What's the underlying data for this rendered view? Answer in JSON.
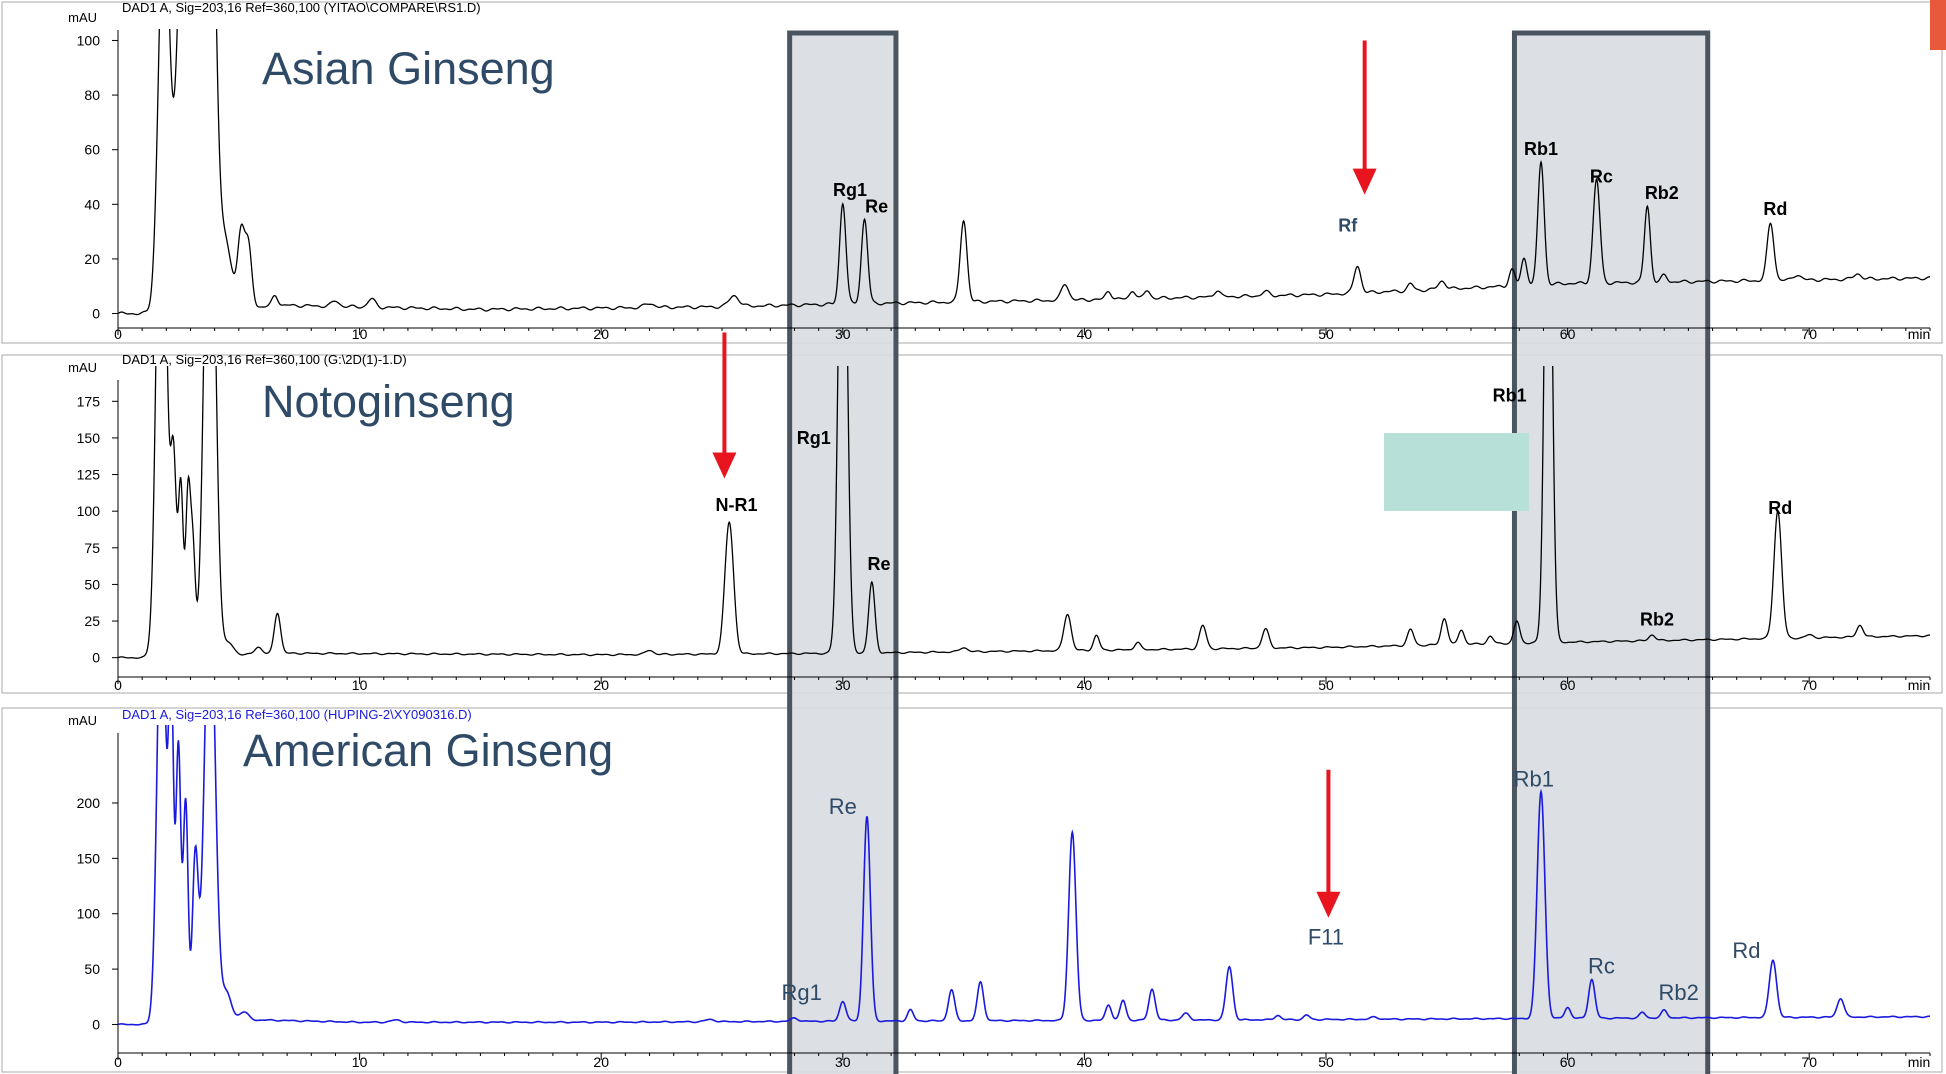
{
  "colors": {
    "trace_black": "#000000",
    "trace_blue": "#1a1adc",
    "header_blue": "#1a1adc",
    "title": "#2e4a66",
    "highlight_fill": "#d8dbe0",
    "highlight_stroke": "#4a5560",
    "arrow": "#e8141e",
    "teal_box": "#b7e0d8",
    "corner_tab": "#e8583a"
  },
  "chart_data": [
    {
      "type": "line",
      "title": "Asian Ginseng",
      "header": "DAD1 A, Sig=203,16 Ref=360,100 (YITAO\\COMPARE\\RS1.D)",
      "ylabel": "mAU",
      "xunit": "min",
      "xlim": [
        0,
        75
      ],
      "ylim": [
        -2,
        102
      ],
      "xticks": [
        0,
        10,
        20,
        30,
        40,
        50,
        60,
        70
      ],
      "yticks": [
        0,
        20,
        40,
        60,
        80,
        100
      ],
      "baseline": [
        [
          0,
          0
        ],
        [
          1.6,
          0
        ],
        [
          7,
          3
        ],
        [
          15,
          1.5
        ],
        [
          25,
          2.5
        ],
        [
          30,
          3.5
        ],
        [
          40,
          5
        ],
        [
          50,
          7
        ],
        [
          55,
          9
        ],
        [
          60,
          11
        ],
        [
          75,
          13
        ]
      ],
      "peaks": [
        {
          "x": 1.9,
          "y": 150,
          "w": 0.22
        },
        {
          "x": 2.9,
          "y": 220,
          "w": 0.35
        },
        {
          "x": 3.2,
          "y": 60,
          "w": 0.25
        },
        {
          "x": 3.8,
          "y": 200,
          "w": 0.22
        },
        {
          "x": 4.4,
          "y": 25,
          "w": 0.3
        },
        {
          "x": 5.1,
          "y": 27,
          "w": 0.14
        },
        {
          "x": 5.4,
          "y": 22,
          "w": 0.14
        },
        {
          "x": 6.5,
          "y": 4,
          "w": 0.12
        },
        {
          "x": 9,
          "y": 2,
          "w": 0.15
        },
        {
          "x": 10.5,
          "y": 3,
          "w": 0.15
        },
        {
          "x": 22,
          "y": 1.5,
          "w": 0.2
        },
        {
          "x": 25.5,
          "y": 4,
          "w": 0.2
        },
        {
          "x": 30,
          "y": 37,
          "w": 0.13
        },
        {
          "x": 30.9,
          "y": 31,
          "w": 0.13
        },
        {
          "x": 35,
          "y": 30,
          "w": 0.14
        },
        {
          "x": 39.2,
          "y": 6,
          "w": 0.15
        },
        {
          "x": 41,
          "y": 3,
          "w": 0.12
        },
        {
          "x": 42,
          "y": 3,
          "w": 0.12
        },
        {
          "x": 42.6,
          "y": 3,
          "w": 0.12
        },
        {
          "x": 45.5,
          "y": 2.5,
          "w": 0.12
        },
        {
          "x": 47.5,
          "y": 1.5,
          "w": 0.15
        },
        {
          "x": 51.3,
          "y": 10,
          "w": 0.14
        },
        {
          "x": 53.5,
          "y": 2.5,
          "w": 0.12
        },
        {
          "x": 54.8,
          "y": 3,
          "w": 0.15
        },
        {
          "x": 57.7,
          "y": 6,
          "w": 0.12
        },
        {
          "x": 58.2,
          "y": 10,
          "w": 0.12
        },
        {
          "x": 58.9,
          "y": 45,
          "w": 0.13
        },
        {
          "x": 61.2,
          "y": 38,
          "w": 0.14
        },
        {
          "x": 63.3,
          "y": 28,
          "w": 0.12
        },
        {
          "x": 64,
          "y": 2.5,
          "w": 0.12
        },
        {
          "x": 68.4,
          "y": 21,
          "w": 0.14
        },
        {
          "x": 69.5,
          "y": 2,
          "w": 0.15
        },
        {
          "x": 72,
          "y": 2,
          "w": 0.15
        }
      ],
      "annotations": [
        {
          "text": "Rg1",
          "x": 30.3,
          "y": 43
        },
        {
          "text": "Re",
          "x": 31.4,
          "y": 37
        },
        {
          "text": "Rf",
          "x": 50.9,
          "y": 30
        },
        {
          "text": "Rb1",
          "x": 58.9,
          "y": 58
        },
        {
          "text": "Rc",
          "x": 61.4,
          "y": 48
        },
        {
          "text": "Rb2",
          "x": 63.9,
          "y": 42
        },
        {
          "text": "Rd",
          "x": 68.6,
          "y": 36
        }
      ]
    },
    {
      "type": "line",
      "title": "Notoginseng",
      "header": "DAD1 A, Sig=203,16 Ref=360,100 (G:\\2D(1)-1.D)",
      "ylabel": "mAU",
      "xunit": "min",
      "xlim": [
        0,
        75
      ],
      "ylim": [
        -5,
        195
      ],
      "xticks": [
        0,
        10,
        20,
        30,
        40,
        50,
        60,
        70
      ],
      "yticks": [
        0,
        25,
        50,
        75,
        100,
        125,
        150,
        175
      ],
      "baseline": [
        [
          0,
          0
        ],
        [
          1.6,
          0
        ],
        [
          7,
          3
        ],
        [
          20,
          2
        ],
        [
          30,
          3
        ],
        [
          40,
          5
        ],
        [
          50,
          7
        ],
        [
          58,
          10
        ],
        [
          75,
          15
        ]
      ],
      "peaks": [
        {
          "x": 1.8,
          "y": 400,
          "w": 0.2
        },
        {
          "x": 2.3,
          "y": 130,
          "w": 0.12
        },
        {
          "x": 2.6,
          "y": 115,
          "w": 0.1
        },
        {
          "x": 2.9,
          "y": 110,
          "w": 0.1
        },
        {
          "x": 3.1,
          "y": 70,
          "w": 0.1
        },
        {
          "x": 3.8,
          "y": 400,
          "w": 0.22
        },
        {
          "x": 4.6,
          "y": 8,
          "w": 0.2
        },
        {
          "x": 5.8,
          "y": 5,
          "w": 0.15
        },
        {
          "x": 6.6,
          "y": 28,
          "w": 0.13
        },
        {
          "x": 22,
          "y": 3,
          "w": 0.15
        },
        {
          "x": 25.3,
          "y": 90,
          "w": 0.18
        },
        {
          "x": 30,
          "y": 400,
          "w": 0.17
        },
        {
          "x": 31.2,
          "y": 48,
          "w": 0.13
        },
        {
          "x": 35,
          "y": 3,
          "w": 0.15
        },
        {
          "x": 39.3,
          "y": 25,
          "w": 0.15
        },
        {
          "x": 40.5,
          "y": 10,
          "w": 0.12
        },
        {
          "x": 42.2,
          "y": 5,
          "w": 0.12
        },
        {
          "x": 44.9,
          "y": 16,
          "w": 0.14
        },
        {
          "x": 47.5,
          "y": 13,
          "w": 0.14
        },
        {
          "x": 53.5,
          "y": 11,
          "w": 0.13
        },
        {
          "x": 54.9,
          "y": 18,
          "w": 0.13
        },
        {
          "x": 55.6,
          "y": 10,
          "w": 0.12
        },
        {
          "x": 56.8,
          "y": 5,
          "w": 0.12
        },
        {
          "x": 57.9,
          "y": 15,
          "w": 0.12
        },
        {
          "x": 59.2,
          "y": 400,
          "w": 0.15
        },
        {
          "x": 63.5,
          "y": 4,
          "w": 0.13
        },
        {
          "x": 68.7,
          "y": 87,
          "w": 0.16
        },
        {
          "x": 70,
          "y": 2,
          "w": 0.15
        },
        {
          "x": 72.1,
          "y": 8,
          "w": 0.13
        }
      ],
      "annotations": [
        {
          "text": "Rg1",
          "x": 28.8,
          "y": 146
        },
        {
          "text": "N-R1",
          "x": 25.6,
          "y": 100
        },
        {
          "text": "Re",
          "x": 31.5,
          "y": 60
        },
        {
          "text": "Rb1",
          "x": 57.6,
          "y": 175
        },
        {
          "text": "Rb2",
          "x": 63.7,
          "y": 22
        },
        {
          "text": "Rd",
          "x": 68.8,
          "y": 98
        }
      ]
    },
    {
      "type": "line",
      "title": "American Ginseng",
      "header": "DAD1 A, Sig=203,16 Ref=360,100 (HUPING-2\\XY090316.D)",
      "ylabel": "mAU",
      "xunit": "min",
      "xlim": [
        0,
        75
      ],
      "ylim": [
        -5,
        265
      ],
      "xticks": [
        0,
        10,
        20,
        30,
        40,
        50,
        60,
        70
      ],
      "yticks": [
        0,
        50,
        100,
        150,
        200
      ],
      "baseline": [
        [
          0,
          0
        ],
        [
          1.6,
          0
        ],
        [
          6,
          4
        ],
        [
          10,
          2
        ],
        [
          20,
          2
        ],
        [
          30,
          3
        ],
        [
          45,
          4
        ],
        [
          55,
          5
        ],
        [
          75,
          7
        ]
      ],
      "peaks": [
        {
          "x": 1.8,
          "y": 400,
          "w": 0.18
        },
        {
          "x": 2.2,
          "y": 300,
          "w": 0.1
        },
        {
          "x": 2.5,
          "y": 250,
          "w": 0.1
        },
        {
          "x": 2.8,
          "y": 200,
          "w": 0.1
        },
        {
          "x": 3.2,
          "y": 150,
          "w": 0.12
        },
        {
          "x": 3.8,
          "y": 400,
          "w": 0.22
        },
        {
          "x": 4.5,
          "y": 25,
          "w": 0.2
        },
        {
          "x": 5.2,
          "y": 8,
          "w": 0.2
        },
        {
          "x": 11.5,
          "y": 2,
          "w": 0.2
        },
        {
          "x": 24.5,
          "y": 2,
          "w": 0.2
        },
        {
          "x": 28,
          "y": 3,
          "w": 0.15
        },
        {
          "x": 30,
          "y": 18,
          "w": 0.13
        },
        {
          "x": 31,
          "y": 185,
          "w": 0.14
        },
        {
          "x": 32.8,
          "y": 10,
          "w": 0.12
        },
        {
          "x": 34.5,
          "y": 28,
          "w": 0.13
        },
        {
          "x": 35.7,
          "y": 35,
          "w": 0.13
        },
        {
          "x": 39.5,
          "y": 170,
          "w": 0.15
        },
        {
          "x": 41,
          "y": 14,
          "w": 0.12
        },
        {
          "x": 41.6,
          "y": 18,
          "w": 0.12
        },
        {
          "x": 42.8,
          "y": 28,
          "w": 0.13
        },
        {
          "x": 44.2,
          "y": 6,
          "w": 0.15
        },
        {
          "x": 46,
          "y": 48,
          "w": 0.14
        },
        {
          "x": 48,
          "y": 4,
          "w": 0.12
        },
        {
          "x": 49.2,
          "y": 4,
          "w": 0.12
        },
        {
          "x": 52,
          "y": 2,
          "w": 0.15
        },
        {
          "x": 58.9,
          "y": 205,
          "w": 0.16
        },
        {
          "x": 60,
          "y": 10,
          "w": 0.12
        },
        {
          "x": 61,
          "y": 35,
          "w": 0.13
        },
        {
          "x": 63.1,
          "y": 5,
          "w": 0.12
        },
        {
          "x": 64,
          "y": 7,
          "w": 0.12
        },
        {
          "x": 68.5,
          "y": 52,
          "w": 0.15
        },
        {
          "x": 71.3,
          "y": 17,
          "w": 0.14
        }
      ],
      "annotations": [
        {
          "text": "Rg1",
          "x": 28.3,
          "y": 22
        },
        {
          "text": "Re",
          "x": 30,
          "y": 190
        },
        {
          "text": "F11",
          "x": 50,
          "y": 72
        },
        {
          "text": "Rb1",
          "x": 58.6,
          "y": 215
        },
        {
          "text": "Rc",
          "x": 61.4,
          "y": 46
        },
        {
          "text": "Rb2",
          "x": 64.6,
          "y": 22
        },
        {
          "text": "Rd",
          "x": 67.4,
          "y": 60
        }
      ]
    }
  ],
  "highlights": [
    {
      "x_start": 27.8,
      "x_end": 32.2
    },
    {
      "x_start": 57.8,
      "x_end": 65.8
    }
  ],
  "arrows": [
    {
      "panel": 0,
      "x": 51.6,
      "y_from": 100,
      "y_to": 45
    },
    {
      "panel": 1,
      "x": 25.1,
      "y_from": 222,
      "y_to": 125
    },
    {
      "panel": 2,
      "x": 50.1,
      "y_from": 230,
      "y_to": 100
    }
  ]
}
